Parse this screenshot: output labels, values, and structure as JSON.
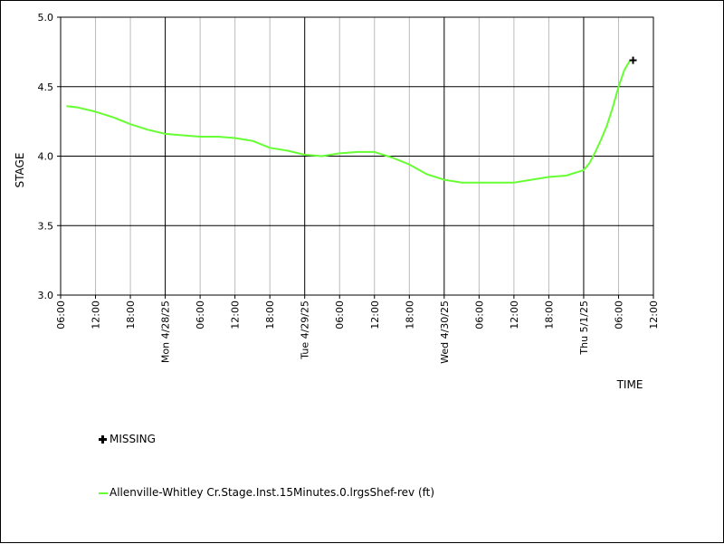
{
  "chart_data": {
    "type": "line",
    "title": "",
    "xlabel": "TIME",
    "ylabel": "STAGE",
    "ylim": [
      3.0,
      5.0
    ],
    "xlim": [
      "2025-04-27 06:00",
      "2025-05-01 12:00"
    ],
    "y_ticks": [
      "3.0",
      "3.5",
      "4.0",
      "4.5",
      "5.0"
    ],
    "x_ticks": [
      "06:00",
      "12:00",
      "18:00",
      "Mon 4/28/25",
      "06:00",
      "12:00",
      "18:00",
      "Tue 4/29/25",
      "06:00",
      "12:00",
      "18:00",
      "Wed 4/30/25",
      "06:00",
      "12:00",
      "18:00",
      "Thu 5/1/25",
      "06:00",
      "12:00"
    ],
    "grid": true,
    "legend_position": "bottom-left",
    "series": [
      {
        "name": "Allenville-Whitley Cr.Stage.Inst.15Minutes.0.lrgsShef-rev (ft)",
        "color": "#66ff33",
        "x": [
          "2025-04-27 07:00",
          "2025-04-27 09:00",
          "2025-04-27 12:00",
          "2025-04-27 15:00",
          "2025-04-27 18:00",
          "2025-04-27 21:00",
          "2025-04-28 00:00",
          "2025-04-28 03:00",
          "2025-04-28 06:00",
          "2025-04-28 09:00",
          "2025-04-28 12:00",
          "2025-04-28 15:00",
          "2025-04-28 18:00",
          "2025-04-28 21:00",
          "2025-04-29 00:00",
          "2025-04-29 03:00",
          "2025-04-29 06:00",
          "2025-04-29 09:00",
          "2025-04-29 12:00",
          "2025-04-29 15:00",
          "2025-04-29 18:00",
          "2025-04-29 21:00",
          "2025-04-30 00:00",
          "2025-04-30 03:00",
          "2025-04-30 06:00",
          "2025-04-30 09:00",
          "2025-04-30 12:00",
          "2025-04-30 15:00",
          "2025-04-30 18:00",
          "2025-04-30 21:00",
          "2025-05-01 00:00",
          "2025-05-01 01:00",
          "2025-05-01 02:00",
          "2025-05-01 03:00",
          "2025-05-01 04:00",
          "2025-05-01 05:00",
          "2025-05-01 06:00",
          "2025-05-01 07:00",
          "2025-05-01 08:00"
        ],
        "y": [
          4.36,
          4.35,
          4.32,
          4.28,
          4.23,
          4.19,
          4.16,
          4.15,
          4.14,
          4.14,
          4.13,
          4.11,
          4.06,
          4.04,
          4.01,
          4.0,
          4.02,
          4.03,
          4.03,
          3.99,
          3.94,
          3.87,
          3.83,
          3.81,
          3.81,
          3.81,
          3.81,
          3.83,
          3.85,
          3.86,
          3.9,
          3.95,
          4.03,
          4.12,
          4.22,
          4.35,
          4.5,
          4.62,
          4.69
        ]
      }
    ],
    "missing": {
      "label": "MISSING",
      "points": [
        {
          "x": "2025-05-01 08:30",
          "y": 4.69
        }
      ]
    }
  }
}
